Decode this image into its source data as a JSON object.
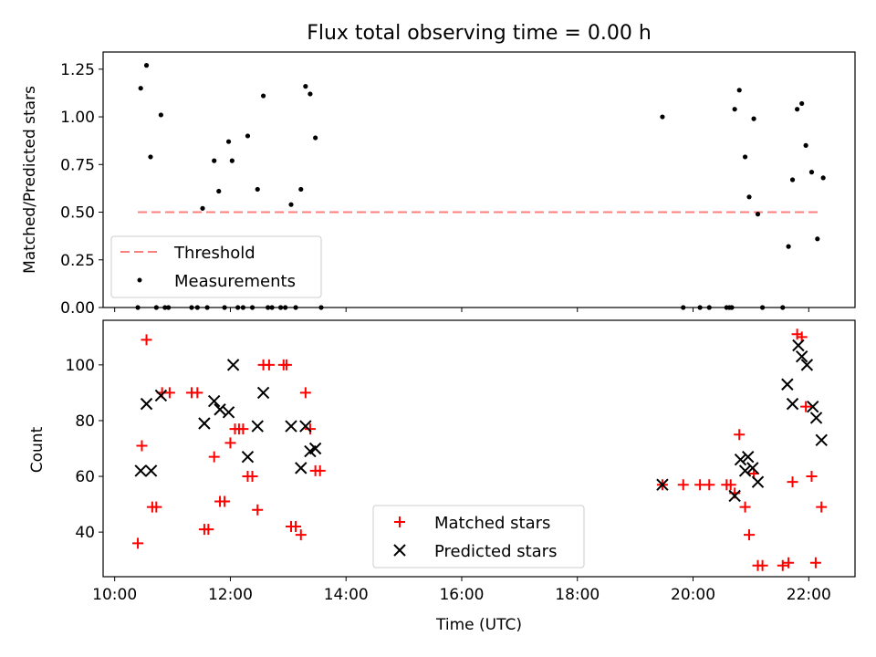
{
  "chart_data": [
    {
      "type": "scatter",
      "title": "Flux total observing time = 0.00 h",
      "xlabel": "",
      "ylabel": "Matched/Predicted stars",
      "xlim": [
        9.8,
        22.8
      ],
      "ylim": [
        0.0,
        1.34
      ],
      "yticks": [
        "0.00",
        "0.25",
        "0.50",
        "0.75",
        "1.00",
        "1.25"
      ],
      "xticks_labeled": false,
      "threshold": {
        "name": "Threshold",
        "value": 0.5,
        "x_start": 10.4,
        "x_end": 22.2,
        "color": "#ff7f7f"
      },
      "series": [
        {
          "name": "Measurements",
          "color": "#000000",
          "marker": "dot",
          "points": [
            [
              10.4,
              0.0
            ],
            [
              10.45,
              1.15
            ],
            [
              10.55,
              1.27
            ],
            [
              10.62,
              0.79
            ],
            [
              10.72,
              0.0
            ],
            [
              10.8,
              1.01
            ],
            [
              10.87,
              0.0
            ],
            [
              10.93,
              0.0
            ],
            [
              11.33,
              0.0
            ],
            [
              11.43,
              0.0
            ],
            [
              11.52,
              0.52
            ],
            [
              11.6,
              0.0
            ],
            [
              11.72,
              0.77
            ],
            [
              11.8,
              0.61
            ],
            [
              11.9,
              0.0
            ],
            [
              11.97,
              0.87
            ],
            [
              12.03,
              0.77
            ],
            [
              12.13,
              0.0
            ],
            [
              12.22,
              0.0
            ],
            [
              12.3,
              0.9
            ],
            [
              12.38,
              0.0
            ],
            [
              12.47,
              0.62
            ],
            [
              12.57,
              1.11
            ],
            [
              12.65,
              0.0
            ],
            [
              12.72,
              0.0
            ],
            [
              12.87,
              0.0
            ],
            [
              12.95,
              0.0
            ],
            [
              13.05,
              0.54
            ],
            [
              13.13,
              0.0
            ],
            [
              13.22,
              0.62
            ],
            [
              13.3,
              1.16
            ],
            [
              13.38,
              1.12
            ],
            [
              13.47,
              0.89
            ],
            [
              13.57,
              0.0
            ],
            [
              19.47,
              1.0
            ],
            [
              19.83,
              0.0
            ],
            [
              20.12,
              0.0
            ],
            [
              20.28,
              0.0
            ],
            [
              20.58,
              0.0
            ],
            [
              20.63,
              0.0
            ],
            [
              20.67,
              0.0
            ],
            [
              20.72,
              1.04
            ],
            [
              20.8,
              1.14
            ],
            [
              20.9,
              0.79
            ],
            [
              20.97,
              0.58
            ],
            [
              21.05,
              0.99
            ],
            [
              21.12,
              0.49
            ],
            [
              21.2,
              0.0
            ],
            [
              21.55,
              0.0
            ],
            [
              21.65,
              0.32
            ],
            [
              21.72,
              0.67
            ],
            [
              21.8,
              1.04
            ],
            [
              21.88,
              1.07
            ],
            [
              21.95,
              0.85
            ],
            [
              22.05,
              0.71
            ],
            [
              22.15,
              0.36
            ],
            [
              22.25,
              0.68
            ]
          ]
        }
      ],
      "legend": {
        "placement": "lower-left",
        "entries": [
          "Threshold",
          "Measurements"
        ]
      }
    },
    {
      "type": "scatter",
      "title": "",
      "xlabel": "Time (UTC)",
      "ylabel": "Count",
      "xlim": [
        9.8,
        22.8
      ],
      "ylim": [
        24,
        116
      ],
      "xticks": [
        "10:00",
        "12:00",
        "14:00",
        "16:00",
        "18:00",
        "20:00",
        "22:00"
      ],
      "yticks": [
        "40",
        "60",
        "80",
        "100"
      ],
      "series": [
        {
          "name": "Matched stars",
          "color": "#ff0000",
          "marker": "plus",
          "points": [
            [
              10.4,
              36
            ],
            [
              10.47,
              71
            ],
            [
              10.55,
              109
            ],
            [
              10.65,
              49
            ],
            [
              10.72,
              49
            ],
            [
              10.82,
              90
            ],
            [
              10.95,
              90
            ],
            [
              11.33,
              90
            ],
            [
              11.43,
              90
            ],
            [
              11.55,
              41
            ],
            [
              11.62,
              41
            ],
            [
              11.72,
              67
            ],
            [
              11.82,
              51
            ],
            [
              11.9,
              51
            ],
            [
              12.0,
              72
            ],
            [
              12.08,
              77
            ],
            [
              12.15,
              77
            ],
            [
              12.22,
              77
            ],
            [
              12.3,
              60
            ],
            [
              12.38,
              60
            ],
            [
              12.47,
              48
            ],
            [
              12.57,
              100
            ],
            [
              12.67,
              100
            ],
            [
              12.92,
              100
            ],
            [
              12.97,
              100
            ],
            [
              13.05,
              42
            ],
            [
              13.13,
              42
            ],
            [
              13.22,
              39
            ],
            [
              13.3,
              90
            ],
            [
              13.38,
              77
            ],
            [
              13.47,
              62
            ],
            [
              13.55,
              62
            ],
            [
              19.47,
              57
            ],
            [
              19.83,
              57
            ],
            [
              20.12,
              57
            ],
            [
              20.28,
              57
            ],
            [
              20.58,
              57
            ],
            [
              20.65,
              57
            ],
            [
              20.72,
              54
            ],
            [
              20.8,
              75
            ],
            [
              20.9,
              49
            ],
            [
              20.97,
              39
            ],
            [
              21.05,
              61
            ],
            [
              21.12,
              28
            ],
            [
              21.2,
              28
            ],
            [
              21.55,
              28
            ],
            [
              21.65,
              29
            ],
            [
              21.72,
              58
            ],
            [
              21.8,
              111
            ],
            [
              21.88,
              110
            ],
            [
              21.95,
              85
            ],
            [
              22.05,
              60
            ],
            [
              22.12,
              29
            ],
            [
              22.22,
              49
            ]
          ]
        },
        {
          "name": "Predicted stars",
          "color": "#000000",
          "marker": "x",
          "points": [
            [
              10.45,
              62
            ],
            [
              10.55,
              86
            ],
            [
              10.63,
              62
            ],
            [
              10.8,
              89
            ],
            [
              11.55,
              79
            ],
            [
              11.72,
              87
            ],
            [
              11.82,
              84
            ],
            [
              11.97,
              83
            ],
            [
              12.05,
              100
            ],
            [
              12.3,
              67
            ],
            [
              12.47,
              78
            ],
            [
              12.57,
              90
            ],
            [
              13.05,
              78
            ],
            [
              13.22,
              63
            ],
            [
              13.3,
              78
            ],
            [
              13.38,
              69
            ],
            [
              13.47,
              70
            ],
            [
              19.47,
              57
            ],
            [
              20.72,
              53
            ],
            [
              20.82,
              66
            ],
            [
              20.9,
              62
            ],
            [
              20.95,
              67
            ],
            [
              21.03,
              63
            ],
            [
              21.12,
              58
            ],
            [
              21.63,
              93
            ],
            [
              21.72,
              86
            ],
            [
              21.82,
              107
            ],
            [
              21.88,
              103
            ],
            [
              21.97,
              100
            ],
            [
              22.07,
              85
            ],
            [
              22.13,
              81
            ],
            [
              22.22,
              73
            ]
          ]
        }
      ],
      "legend": {
        "placement": "lower-center",
        "entries": [
          "Matched stars",
          "Predicted stars"
        ]
      }
    }
  ]
}
